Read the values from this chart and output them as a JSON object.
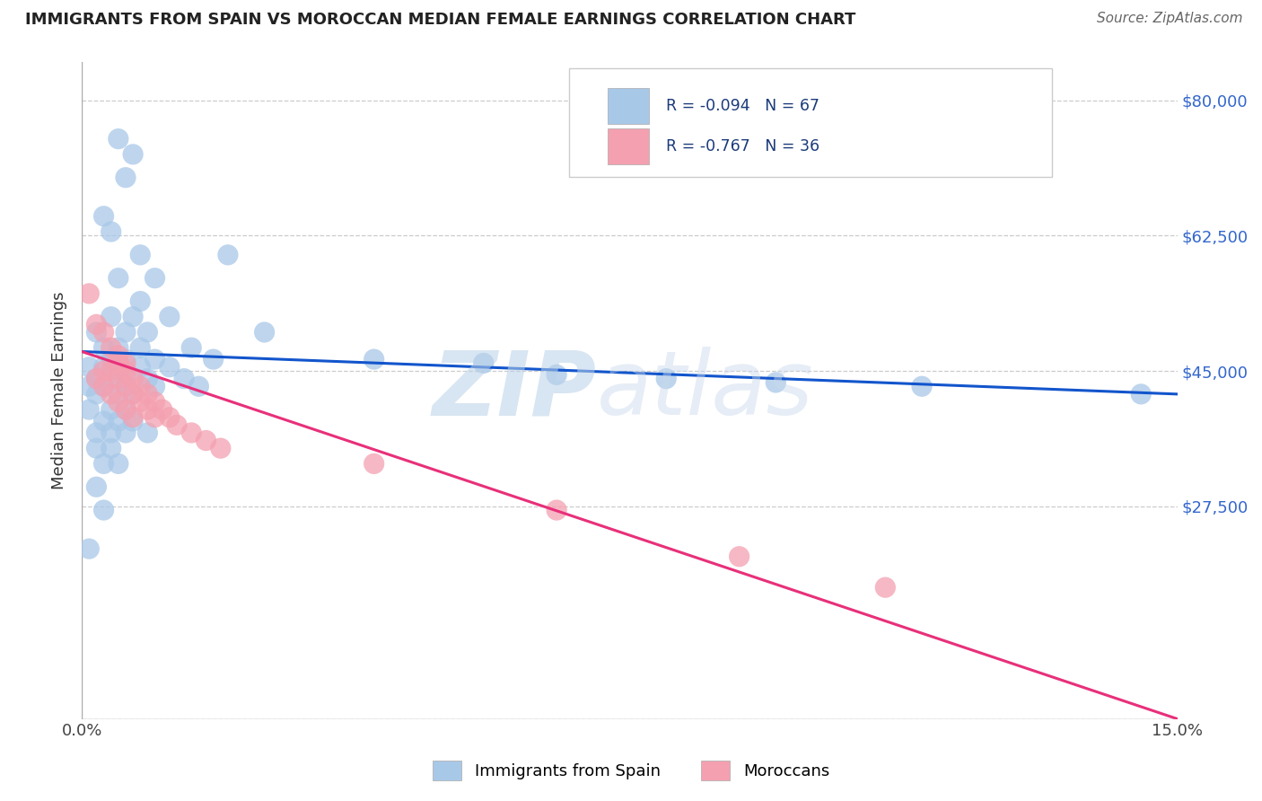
{
  "title": "IMMIGRANTS FROM SPAIN VS MOROCCAN MEDIAN FEMALE EARNINGS CORRELATION CHART",
  "source": "Source: ZipAtlas.com",
  "ylabel": "Median Female Earnings",
  "legend_label1": "Immigrants from Spain",
  "legend_label2": "Moroccans",
  "r1": -0.094,
  "n1": 67,
  "r2": -0.767,
  "n2": 36,
  "xlim": [
    0.0,
    0.15
  ],
  "ylim": [
    0,
    85000
  ],
  "yticks": [
    0,
    27500,
    45000,
    62500,
    80000
  ],
  "ytick_labels": [
    "",
    "$27,500",
    "$45,000",
    "$62,500",
    "$80,000"
  ],
  "xticks": [
    0.0,
    0.015,
    0.03,
    0.045,
    0.06,
    0.075,
    0.09,
    0.105,
    0.12,
    0.135,
    0.15
  ],
  "xtick_labels": [
    "0.0%",
    "",
    "",
    "",
    "",
    "",
    "",
    "",
    "",
    "",
    "15.0%"
  ],
  "color_blue": "#A8C8E8",
  "color_pink": "#F4A0B0",
  "line_blue": "#1255CC",
  "line_pink": "#E8307A",
  "title_color": "#222222",
  "watermark_color": "#C8DCF0",
  "watermark": "ZIPatlas",
  "scatter_blue": [
    [
      0.005,
      75000
    ],
    [
      0.007,
      73000
    ],
    [
      0.006,
      70000
    ],
    [
      0.003,
      65000
    ],
    [
      0.004,
      63000
    ],
    [
      0.008,
      60000
    ],
    [
      0.02,
      60000
    ],
    [
      0.005,
      57000
    ],
    [
      0.01,
      57000
    ],
    [
      0.008,
      54000
    ],
    [
      0.004,
      52000
    ],
    [
      0.007,
      52000
    ],
    [
      0.012,
      52000
    ],
    [
      0.002,
      50000
    ],
    [
      0.006,
      50000
    ],
    [
      0.009,
      50000
    ],
    [
      0.025,
      50000
    ],
    [
      0.003,
      48000
    ],
    [
      0.005,
      48000
    ],
    [
      0.008,
      48000
    ],
    [
      0.015,
      48000
    ],
    [
      0.004,
      46500
    ],
    [
      0.006,
      46500
    ],
    [
      0.01,
      46500
    ],
    [
      0.018,
      46500
    ],
    [
      0.001,
      45500
    ],
    [
      0.003,
      45500
    ],
    [
      0.005,
      45500
    ],
    [
      0.008,
      45500
    ],
    [
      0.012,
      45500
    ],
    [
      0.002,
      44000
    ],
    [
      0.004,
      44000
    ],
    [
      0.006,
      44000
    ],
    [
      0.009,
      44000
    ],
    [
      0.014,
      44000
    ],
    [
      0.001,
      43000
    ],
    [
      0.003,
      43000
    ],
    [
      0.006,
      43000
    ],
    [
      0.01,
      43000
    ],
    [
      0.016,
      43000
    ],
    [
      0.002,
      42000
    ],
    [
      0.005,
      42000
    ],
    [
      0.007,
      42000
    ],
    [
      0.001,
      40000
    ],
    [
      0.004,
      40000
    ],
    [
      0.006,
      40000
    ],
    [
      0.003,
      38500
    ],
    [
      0.005,
      38500
    ],
    [
      0.007,
      38500
    ],
    [
      0.002,
      37000
    ],
    [
      0.004,
      37000
    ],
    [
      0.006,
      37000
    ],
    [
      0.009,
      37000
    ],
    [
      0.002,
      35000
    ],
    [
      0.004,
      35000
    ],
    [
      0.003,
      33000
    ],
    [
      0.005,
      33000
    ],
    [
      0.002,
      30000
    ],
    [
      0.003,
      27000
    ],
    [
      0.001,
      22000
    ],
    [
      0.04,
      46500
    ],
    [
      0.055,
      46000
    ],
    [
      0.065,
      44500
    ],
    [
      0.08,
      44000
    ],
    [
      0.095,
      43500
    ],
    [
      0.115,
      43000
    ],
    [
      0.145,
      42000
    ]
  ],
  "scatter_pink": [
    [
      0.001,
      55000
    ],
    [
      0.002,
      51000
    ],
    [
      0.003,
      50000
    ],
    [
      0.004,
      48000
    ],
    [
      0.005,
      47000
    ],
    [
      0.005,
      46000
    ],
    [
      0.006,
      46000
    ],
    [
      0.003,
      45000
    ],
    [
      0.004,
      45000
    ],
    [
      0.006,
      45000
    ],
    [
      0.002,
      44000
    ],
    [
      0.005,
      44000
    ],
    [
      0.007,
      44000
    ],
    [
      0.003,
      43000
    ],
    [
      0.006,
      43000
    ],
    [
      0.008,
      43000
    ],
    [
      0.004,
      42000
    ],
    [
      0.007,
      42000
    ],
    [
      0.009,
      42000
    ],
    [
      0.005,
      41000
    ],
    [
      0.008,
      41000
    ],
    [
      0.01,
      41000
    ],
    [
      0.006,
      40000
    ],
    [
      0.009,
      40000
    ],
    [
      0.011,
      40000
    ],
    [
      0.007,
      39000
    ],
    [
      0.01,
      39000
    ],
    [
      0.012,
      39000
    ],
    [
      0.013,
      38000
    ],
    [
      0.015,
      37000
    ],
    [
      0.017,
      36000
    ],
    [
      0.019,
      35000
    ],
    [
      0.04,
      33000
    ],
    [
      0.065,
      27000
    ],
    [
      0.09,
      21000
    ],
    [
      0.11,
      17000
    ]
  ],
  "background_color": "#FFFFFF",
  "grid_color": "#CCCCCC"
}
